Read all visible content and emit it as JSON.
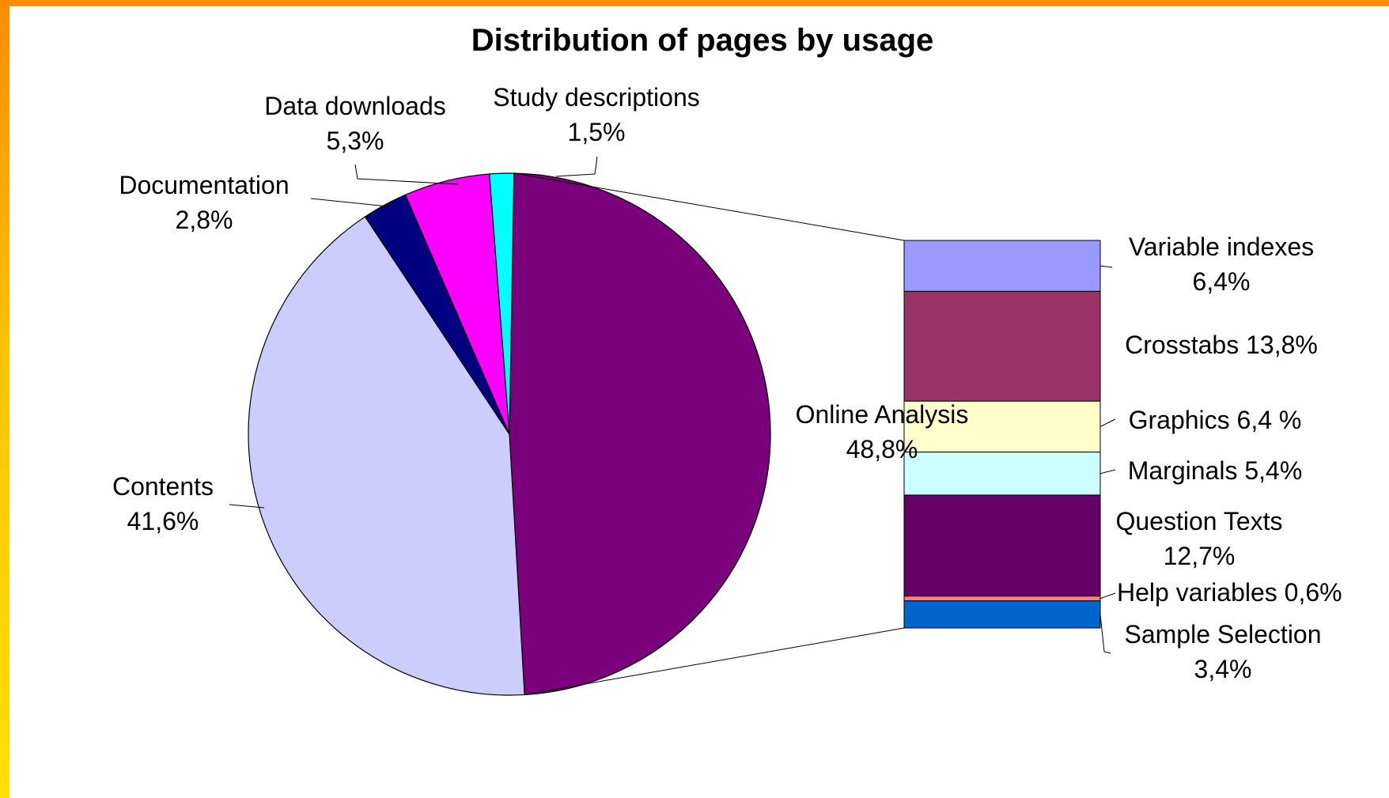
{
  "chart_data": {
    "type": "pie",
    "title": "Distribution of pages by usage",
    "slices": [
      {
        "name": "Online Analysis",
        "value_label": "48,8%",
        "value": 48.8,
        "color": "#7b007b"
      },
      {
        "name": "Contents",
        "value_label": "41,6%",
        "value": 41.6,
        "color": "#ccccff"
      },
      {
        "name": "Documentation",
        "value_label": "2,8%",
        "value": 2.8,
        "color": "#000080"
      },
      {
        "name": "Data downloads",
        "value_label": "5,3%",
        "value": 5.3,
        "color": "#ff00ff"
      },
      {
        "name": "Study descriptions",
        "value_label": "1,5%",
        "value": 1.5,
        "color": "#00ffff"
      }
    ],
    "breakdown": {
      "of": "Online Analysis",
      "segments": [
        {
          "name": "Variable indexes",
          "value_label": "6,4%",
          "value": 6.4,
          "color": "#9999ff"
        },
        {
          "name": "Crosstabs",
          "value_label": "13,8%",
          "value": 13.8,
          "color": "#993366"
        },
        {
          "name": "Graphics",
          "value_label": "6,4 %",
          "value": 6.4,
          "color": "#ffffcc"
        },
        {
          "name": "Marginals",
          "value_label": "5,4%",
          "value": 5.4,
          "color": "#ccffff"
        },
        {
          "name": "Question Texts",
          "value_label": "12,7%",
          "value": 12.7,
          "color": "#660066"
        },
        {
          "name": "Help variables",
          "value_label": "0,6%",
          "value": 0.6,
          "color": "#ff8080"
        },
        {
          "name": "Sample Selection",
          "value_label": "3,4%",
          "value": 3.4,
          "color": "#0066cc"
        }
      ]
    }
  }
}
